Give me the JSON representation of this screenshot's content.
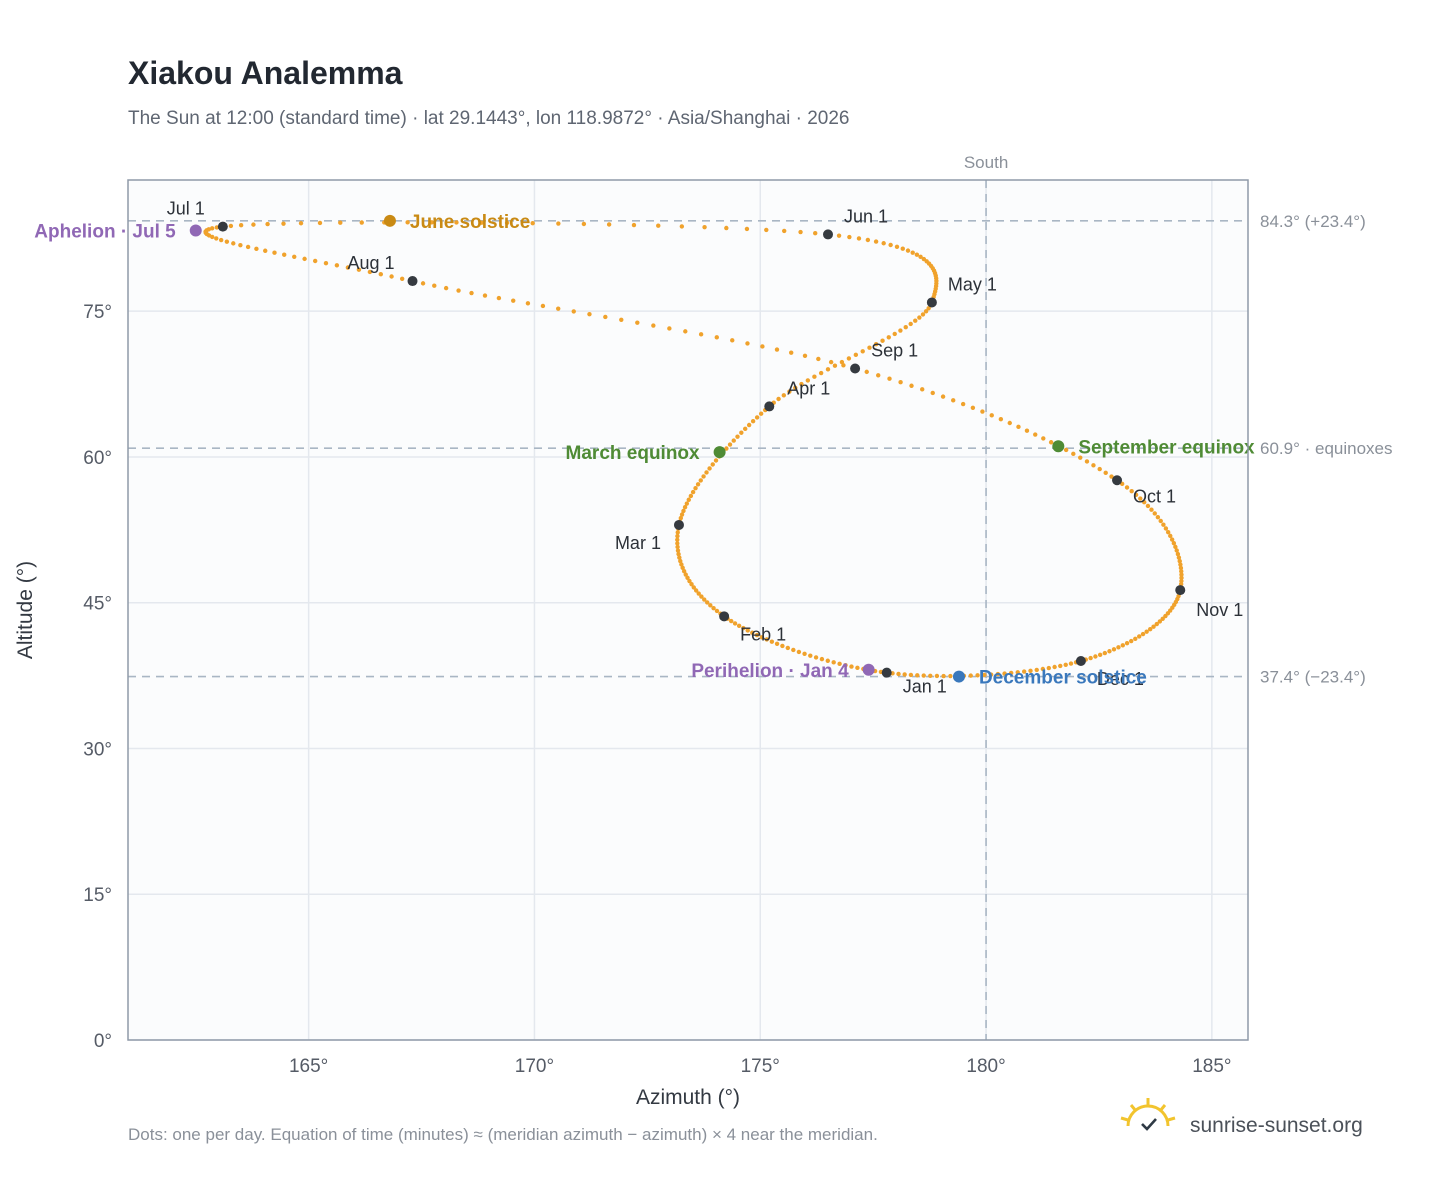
{
  "header": {
    "title": "Xiakou Analemma",
    "subtitle": "The Sun at 12:00 (standard time) · lat 29.1443°, lon 118.9872° · Asia/Shanghai · 2026"
  },
  "footer": {
    "note": "Dots: one per day. Equation of time (minutes) ≈ (meridian azimuth − azimuth) × 4 near the meridian.",
    "brand": "sunrise-sunset.org",
    "brand_icon": "sun-check-icon"
  },
  "colors": {
    "curve": "#f0a22c",
    "month_marker": "#353a40",
    "apsis": "#9068b5",
    "equinox": "#4f8b35",
    "june_solstice": "#c98a14",
    "december_solstice": "#3a78bc",
    "grid": "#e4e8ee",
    "reference": "#a9b6c4",
    "plot_bg": "#fbfcfd",
    "frame": "#8f9aa8"
  },
  "chart_data": {
    "type": "scatter",
    "title": "Xiakou Analemma",
    "xlabel": "Azimuth (°)",
    "ylabel": "Altitude (°)",
    "xlim": [
      161,
      185.8
    ],
    "ylim": [
      0,
      88.5
    ],
    "xticks": [
      165,
      170,
      175,
      180,
      185
    ],
    "yticks": [
      0,
      15,
      30,
      45,
      60,
      75
    ],
    "xtick_labels": [
      "165°",
      "170°",
      "175°",
      "180°",
      "185°"
    ],
    "ytick_labels": [
      "0°",
      "15°",
      "30°",
      "45°",
      "60°",
      "75°"
    ],
    "grid": true,
    "meridian": {
      "azimuth": 180,
      "label": "South"
    },
    "reference_lines": [
      {
        "altitude": 84.3,
        "label": "84.3° (+23.4°)"
      },
      {
        "altitude": 60.9,
        "label": "60.9° · equinoxes"
      },
      {
        "altitude": 37.4,
        "label": "37.4° (−23.4°)"
      }
    ],
    "month_markers": [
      {
        "label": "Jan 1",
        "az": 177.8,
        "alt": 37.8
      },
      {
        "label": "Feb 1",
        "az": 174.2,
        "alt": 43.6
      },
      {
        "label": "Mar 1",
        "az": 173.2,
        "alt": 53.0
      },
      {
        "label": "Apr 1",
        "az": 175.2,
        "alt": 65.2
      },
      {
        "label": "May 1",
        "az": 178.8,
        "alt": 75.9
      },
      {
        "label": "Jun 1",
        "az": 176.5,
        "alt": 82.9
      },
      {
        "label": "Jul 1",
        "az": 163.1,
        "alt": 83.7
      },
      {
        "label": "Aug 1",
        "az": 167.3,
        "alt": 78.1
      },
      {
        "label": "Sep 1",
        "az": 177.1,
        "alt": 69.1
      },
      {
        "label": "Oct 1",
        "az": 182.9,
        "alt": 57.6
      },
      {
        "label": "Nov 1",
        "az": 184.3,
        "alt": 46.3
      },
      {
        "label": "Dec 1",
        "az": 182.1,
        "alt": 39.0
      }
    ],
    "events": [
      {
        "label": "Aphelion · Jul 5",
        "az": 162.5,
        "alt": 83.3,
        "kind": "apsis"
      },
      {
        "label": "Perihelion · Jan 4",
        "az": 177.4,
        "alt": 38.1,
        "kind": "apsis"
      },
      {
        "label": "March equinox",
        "az": 174.1,
        "alt": 60.5,
        "kind": "equinox"
      },
      {
        "label": "September equinox",
        "az": 181.6,
        "alt": 61.1,
        "kind": "equinox"
      },
      {
        "label": "June solstice",
        "az": 166.8,
        "alt": 84.3,
        "kind": "june_solstice"
      },
      {
        "label": "December solstice",
        "az": 179.4,
        "alt": 37.4,
        "kind": "december_solstice"
      }
    ]
  }
}
